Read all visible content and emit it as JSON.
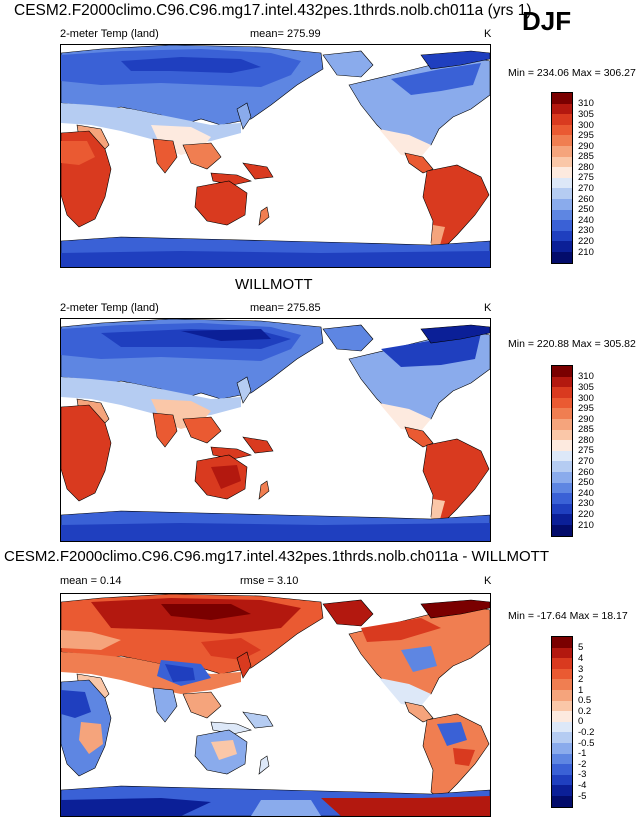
{
  "header": {
    "title": "CESM2.F2000climo.C96.C96.mg17.intel.432pes.1thrds.nolb.ch011a (yrs 1)",
    "season": "DJF"
  },
  "panels": [
    {
      "variable": "2-meter Temp (land)",
      "stat": "mean= 275.99",
      "units": "K",
      "minmax": "Min = 234.06 Max = 306.27",
      "colorbar_levels": [
        "310",
        "305",
        "300",
        "295",
        "290",
        "285",
        "280",
        "275",
        "270",
        "260",
        "250",
        "240",
        "230",
        "220",
        "210"
      ]
    },
    {
      "title": "WILLMOTT",
      "variable": "2-meter Temp (land)",
      "stat": "mean= 275.85",
      "units": "K",
      "minmax": "Min = 220.88 Max = 305.82",
      "colorbar_levels": [
        "310",
        "305",
        "300",
        "295",
        "290",
        "285",
        "280",
        "275",
        "270",
        "260",
        "250",
        "240",
        "230",
        "220",
        "210"
      ]
    },
    {
      "title": "CESM2.F2000climo.C96.C96.mg17.intel.432pes.1thrds.nolb.ch011a - WILLMOTT",
      "mean": "mean =   0.14",
      "rmse": "rmse =   3.10",
      "units": "K",
      "minmax": "Min = -17.64 Max =  18.17",
      "colorbar_levels": [
        "5",
        "4",
        "3",
        "2",
        "1",
        "0.5",
        "0.2",
        "0",
        "-0.2",
        "-0.5",
        "-1",
        "-2",
        "-3",
        "-4",
        "-5"
      ]
    }
  ],
  "colors": {
    "temp_scale": [
      "#7a0000",
      "#b3180f",
      "#d93a1f",
      "#ea5a32",
      "#f07e51",
      "#f5a47c",
      "#fac7a8",
      "#fdeadf",
      "#dde8f8",
      "#b5ccf2",
      "#8aabec",
      "#5e86e2",
      "#3a61d6",
      "#1f3fbf",
      "#0b1f97",
      "#030c6b"
    ],
    "diff_scale": [
      "#7a0000",
      "#b3180f",
      "#d93a1f",
      "#ea5a32",
      "#f07e51",
      "#f5a47c",
      "#fac7a8",
      "#fdeadf",
      "#dde8f8",
      "#b5ccf2",
      "#8aabec",
      "#5e86e2",
      "#3a61d6",
      "#1f3fbf",
      "#0b1f97",
      "#030c6b"
    ],
    "ocean": "#ffffff",
    "coastline": "#000000"
  }
}
